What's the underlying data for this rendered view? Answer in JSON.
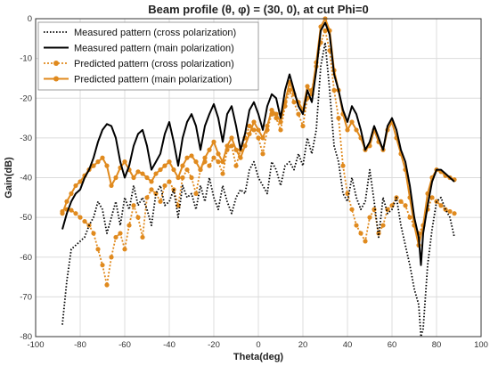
{
  "chart_data": {
    "type": "line",
    "title": "Beam  profile (θ, φ) = (30, 0), at cut Phi=0",
    "xlabel": "Theta(deg)",
    "ylabel": "Gain(dB)",
    "xlim": [
      -100,
      100
    ],
    "ylim": [
      -80,
      0
    ],
    "xticks": [
      -100,
      -80,
      -60,
      -40,
      -20,
      0,
      20,
      40,
      60,
      80,
      100
    ],
    "yticks": [
      0,
      -10,
      -20,
      -30,
      -40,
      -50,
      -60,
      -70,
      -80
    ],
    "grid": true,
    "legend_position": "top-left",
    "series": [
      {
        "name": "Measured pattern (cross polarization)",
        "style": "dotted",
        "color": "#000000",
        "x": [
          -88,
          -86,
          -84,
          -82,
          -80,
          -78,
          -76,
          -74,
          -72,
          -70,
          -68,
          -66,
          -64,
          -62,
          -60,
          -58,
          -56,
          -54,
          -52,
          -50,
          -48,
          -46,
          -44,
          -42,
          -40,
          -38,
          -36,
          -34,
          -32,
          -30,
          -28,
          -26,
          -24,
          -22,
          -20,
          -18,
          -16,
          -14,
          -12,
          -10,
          -8,
          -6,
          -4,
          -2,
          0,
          2,
          4,
          6,
          8,
          10,
          12,
          14,
          16,
          18,
          20,
          22,
          24,
          26,
          28,
          30,
          32,
          34,
          36,
          38,
          40,
          42,
          44,
          46,
          48,
          50,
          52,
          54,
          56,
          58,
          60,
          62,
          64,
          66,
          68,
          70,
          72,
          73,
          74,
          76,
          78,
          80,
          82,
          84,
          86,
          88
        ],
        "values": [
          -77,
          -66,
          -58,
          -57,
          -56,
          -55,
          -52,
          -50,
          -46,
          -48,
          -54,
          -50,
          -46,
          -52,
          -45,
          -48,
          -42,
          -47,
          -45,
          -48,
          -52,
          -44,
          -42,
          -47,
          -46,
          -43,
          -50,
          -42,
          -45,
          -44,
          -48,
          -42,
          -46,
          -40,
          -45,
          -48,
          -42,
          -46,
          -49,
          -45,
          -43,
          -44,
          -38,
          -36,
          -40,
          -42,
          -44,
          -36,
          -38,
          -42,
          -37,
          -36,
          -38,
          -34,
          -37,
          -30,
          -34,
          -28,
          -12,
          -6,
          -18,
          -32,
          -36,
          -44,
          -46,
          -40,
          -45,
          -48,
          -46,
          -38,
          -46,
          -55,
          -45,
          -49,
          -48,
          -45,
          -52,
          -57,
          -62,
          -68,
          -72,
          -80,
          -78,
          -62,
          -53,
          -46,
          -45,
          -48,
          -50,
          -55
        ]
      },
      {
        "name": "Measured pattern (main polarization)",
        "style": "solid",
        "color": "#000000",
        "x": [
          -88,
          -86,
          -84,
          -82,
          -80,
          -78,
          -76,
          -74,
          -72,
          -70,
          -68,
          -66,
          -64,
          -62,
          -60,
          -58,
          -56,
          -54,
          -52,
          -50,
          -48,
          -46,
          -44,
          -42,
          -40,
          -38,
          -36,
          -34,
          -32,
          -30,
          -28,
          -26,
          -24,
          -22,
          -20,
          -18,
          -16,
          -14,
          -12,
          -10,
          -8,
          -6,
          -4,
          -2,
          0,
          2,
          4,
          6,
          8,
          10,
          12,
          14,
          16,
          18,
          20,
          22,
          24,
          26,
          28,
          30,
          32,
          34,
          36,
          38,
          40,
          42,
          44,
          46,
          48,
          50,
          52,
          54,
          56,
          58,
          60,
          62,
          64,
          66,
          68,
          70,
          72,
          73,
          74,
          76,
          78,
          80,
          82,
          84,
          86,
          88
        ],
        "values": [
          -53,
          -49,
          -46,
          -44,
          -43,
          -40,
          -38,
          -35,
          -31,
          -28,
          -26.5,
          -27,
          -30,
          -36,
          -40,
          -37,
          -32,
          -29,
          -28,
          -32,
          -38,
          -36,
          -34,
          -29,
          -26,
          -31,
          -37,
          -30,
          -26,
          -24,
          -27,
          -33,
          -27,
          -24,
          -21.5,
          -25,
          -31,
          -24,
          -22,
          -27,
          -33,
          -29,
          -23,
          -21,
          -24,
          -28,
          -22,
          -19,
          -20,
          -25,
          -18,
          -14,
          -18,
          -22,
          -24,
          -18,
          -21,
          -13,
          -3,
          -1,
          -4,
          -14,
          -18,
          -23,
          -26,
          -22,
          -24,
          -28,
          -33,
          -31,
          -27,
          -30,
          -33,
          -27,
          -25,
          -28,
          -33,
          -36,
          -42,
          -50,
          -55,
          -62,
          -54,
          -47,
          -41,
          -38,
          -38,
          -39,
          -40,
          -41
        ]
      },
      {
        "name": "Predicted pattern (cross polarization)",
        "style": "dotted-marker",
        "color": "#E08A1E",
        "x": [
          -88,
          -86,
          -84,
          -82,
          -80,
          -78,
          -76,
          -74,
          -72,
          -70,
          -68,
          -66,
          -64,
          -62,
          -60,
          -58,
          -56,
          -54,
          -52,
          -50,
          -48,
          -46,
          -44,
          -42,
          -40,
          -38,
          -36,
          -34,
          -32,
          -30,
          -28,
          -26,
          -24,
          -22,
          -20,
          -18,
          -16,
          -14,
          -12,
          -10,
          -8,
          -6,
          -4,
          -2,
          0,
          2,
          4,
          6,
          8,
          10,
          12,
          14,
          16,
          18,
          20,
          22,
          24,
          26,
          28,
          30,
          32,
          34,
          36,
          38,
          40,
          42,
          44,
          46,
          48,
          50,
          52,
          54,
          56,
          58,
          60,
          62,
          64,
          66,
          68,
          70,
          72,
          74,
          76,
          78,
          80,
          82,
          84,
          86,
          88
        ],
        "values": [
          -48.5,
          -48,
          -48.2,
          -49,
          -50,
          -51,
          -52,
          -54,
          -58,
          -62,
          -67,
          -60,
          -55,
          -54,
          -58,
          -52,
          -47,
          -50,
          -55,
          -45,
          -43,
          -44,
          -46,
          -42,
          -41,
          -43,
          -47,
          -40,
          -38,
          -40,
          -44,
          -38,
          -36,
          -37,
          -35,
          -36,
          -39,
          -33,
          -32,
          -37,
          -33,
          -30,
          -27,
          -28,
          -30,
          -34,
          -28,
          -24,
          -25,
          -28,
          -22,
          -18,
          -21,
          -24,
          -27,
          -20,
          -18,
          -12,
          -6,
          -3,
          -8,
          -18,
          -25,
          -37,
          -44,
          -48,
          -52,
          -54,
          -56,
          -50,
          -48,
          -54,
          -52,
          -48,
          -47,
          -45,
          -46,
          -47,
          -50,
          -52,
          -54,
          -52,
          -48,
          -45,
          -46,
          -47,
          -48,
          -48.5,
          -49
        ]
      },
      {
        "name": "Predicted pattern (main polarization)",
        "style": "solid-marker",
        "color": "#E08A1E",
        "x": [
          -88,
          -86,
          -84,
          -82,
          -80,
          -78,
          -76,
          -74,
          -72,
          -70,
          -68,
          -66,
          -64,
          -62,
          -60,
          -58,
          -56,
          -54,
          -52,
          -50,
          -48,
          -46,
          -44,
          -42,
          -40,
          -38,
          -36,
          -34,
          -32,
          -30,
          -28,
          -26,
          -24,
          -22,
          -20,
          -18,
          -16,
          -14,
          -12,
          -10,
          -8,
          -6,
          -4,
          -2,
          0,
          2,
          4,
          6,
          8,
          10,
          12,
          14,
          16,
          18,
          20,
          22,
          24,
          26,
          28,
          30,
          32,
          34,
          36,
          38,
          40,
          42,
          44,
          46,
          48,
          50,
          52,
          54,
          56,
          58,
          60,
          62,
          64,
          66,
          68,
          70,
          72,
          74,
          76,
          78,
          80,
          82,
          84,
          86,
          88
        ],
        "values": [
          -49,
          -46,
          -44,
          -42,
          -41,
          -39.5,
          -38,
          -37,
          -36,
          -35,
          -37,
          -42,
          -40,
          -37.5,
          -36,
          -38,
          -40,
          -38.5,
          -39,
          -40,
          -41,
          -39,
          -38,
          -37,
          -36,
          -38,
          -40,
          -37,
          -35,
          -34.5,
          -36,
          -38,
          -35,
          -33,
          -31,
          -34,
          -36,
          -32,
          -30,
          -33,
          -35,
          -32,
          -29,
          -26,
          -28,
          -30,
          -27,
          -23,
          -24,
          -26,
          -21,
          -16,
          -19,
          -21,
          -23,
          -17,
          -19,
          -11,
          -2,
          0,
          -3,
          -13,
          -18,
          -24,
          -28,
          -26,
          -28,
          -30,
          -33,
          -32,
          -28,
          -31,
          -33,
          -28,
          -26,
          -30,
          -34,
          -38,
          -45,
          -52,
          -57,
          -52,
          -44,
          -40,
          -38,
          -38.5,
          -39.5,
          -40,
          -40.5
        ]
      }
    ]
  }
}
